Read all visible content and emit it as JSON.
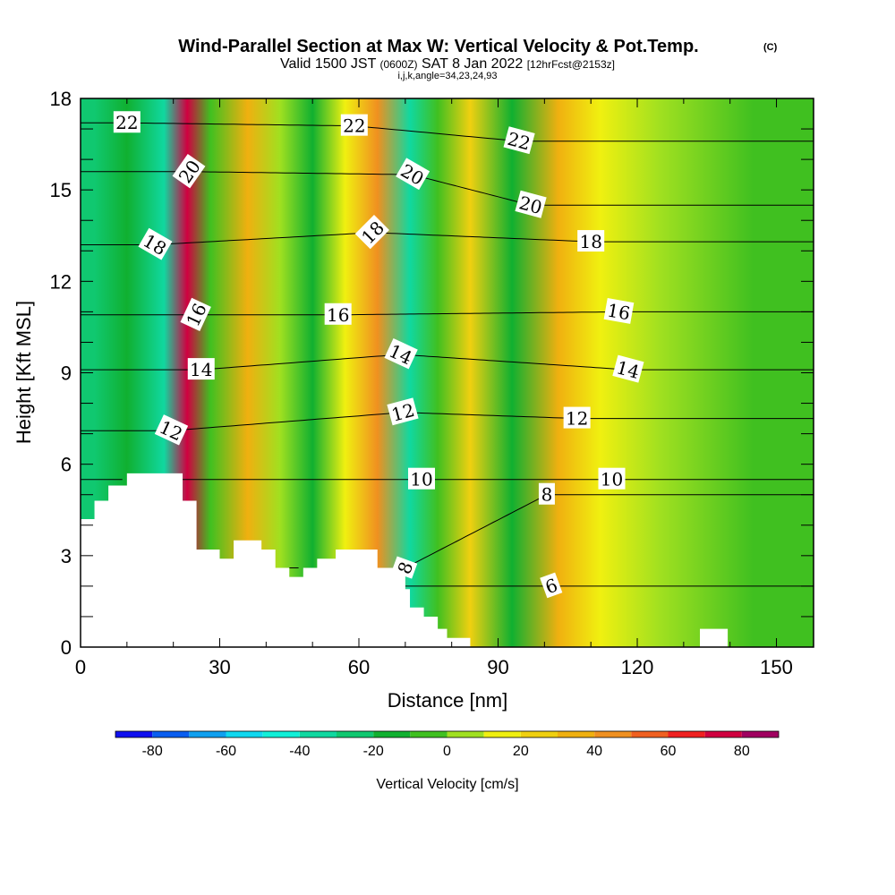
{
  "header": {
    "title": "Wind-Parallel Section at Max W: Vertical Velocity & Pot.Temp.",
    "copyright": "(C)",
    "subtitle_valid": "Valid 1500 JST",
    "subtitle_z": "(0600Z)",
    "subtitle_date": "SAT 8 Jan 2022",
    "subtitle_fcst": "[12hrFcst@2153z]",
    "subtitle_ijk": "i,j,k,angle=34,23,24,93"
  },
  "colorbar": {
    "label": "Vertical Velocity [cm/s]",
    "tick_labels": [
      "-80",
      "-60",
      "-40",
      "-20",
      "0",
      "20",
      "40",
      "60",
      "80"
    ],
    "bins": [
      -90,
      -80,
      -70,
      -60,
      -50,
      -40,
      -30,
      -20,
      -10,
      0,
      10,
      20,
      30,
      40,
      50,
      60,
      70,
      80,
      90
    ],
    "colors": [
      "#1010f0",
      "#0a5ef0",
      "#10a0f0",
      "#10d8f0",
      "#10f0d8",
      "#10d8a0",
      "#10c870",
      "#10b030",
      "#40c020",
      "#a0e020",
      "#f0f010",
      "#f0d010",
      "#f0b010",
      "#f09020",
      "#f06020",
      "#f02020",
      "#d00040",
      "#a00060",
      "#600090"
    ]
  },
  "chart_data": {
    "type": "heatmap",
    "title": "Wind-Parallel Section at Max W: Vertical Velocity & Pot.Temp.",
    "xlabel": "Distance [nm]",
    "ylabel": "Height [Kft MSL]",
    "xlim": [
      0,
      158
    ],
    "ylim": [
      0,
      18
    ],
    "x_ticks": [
      0,
      30,
      60,
      90,
      120,
      150
    ],
    "x_tick_labels": [
      "0",
      "30",
      "60",
      "90",
      "120",
      "150"
    ],
    "y_ticks": [
      0,
      3,
      6,
      9,
      12,
      15,
      18
    ],
    "y_tick_labels": [
      "0",
      "3",
      "6",
      "9",
      "12",
      "15",
      "18"
    ],
    "shaded_variable": "Vertical Velocity [cm/s]",
    "vertical_velocity_bands": [
      {
        "x": 3,
        "value": -25
      },
      {
        "x": 10,
        "value": -15
      },
      {
        "x": 18,
        "value": -35
      },
      {
        "x": 23,
        "value": 70
      },
      {
        "x": 28,
        "value": -5
      },
      {
        "x": 36,
        "value": 30
      },
      {
        "x": 43,
        "value": 5
      },
      {
        "x": 50,
        "value": -15
      },
      {
        "x": 57,
        "value": 10
      },
      {
        "x": 64,
        "value": 45
      },
      {
        "x": 71,
        "value": -40
      },
      {
        "x": 77,
        "value": -10
      },
      {
        "x": 84,
        "value": 20
      },
      {
        "x": 93,
        "value": -20
      },
      {
        "x": 103,
        "value": 30
      },
      {
        "x": 112,
        "value": 10
      },
      {
        "x": 125,
        "value": 0
      },
      {
        "x": 145,
        "value": -5
      }
    ],
    "contour_variable": "Potential Temperature",
    "contour_labels": [
      {
        "text": "22",
        "x": 10,
        "y": 17.2,
        "angle": 0
      },
      {
        "text": "20",
        "x": 23.5,
        "y": 15.6,
        "angle": -55
      },
      {
        "text": "18",
        "x": 16,
        "y": 13.2,
        "angle": 30
      },
      {
        "text": "16",
        "x": 25,
        "y": 10.9,
        "angle": -65
      },
      {
        "text": "14",
        "x": 26,
        "y": 9.1,
        "angle": 0
      },
      {
        "text": "12",
        "x": 19.5,
        "y": 7.1,
        "angle": 25
      },
      {
        "text": "22",
        "x": 59,
        "y": 17.1,
        "angle": 0
      },
      {
        "text": "20",
        "x": 71.5,
        "y": 15.5,
        "angle": 30
      },
      {
        "text": "18",
        "x": 63,
        "y": 13.6,
        "angle": -45
      },
      {
        "text": "16",
        "x": 55.5,
        "y": 10.9,
        "angle": 0
      },
      {
        "text": "14",
        "x": 69,
        "y": 9.6,
        "angle": 25
      },
      {
        "text": "12",
        "x": 69.5,
        "y": 7.7,
        "angle": -15
      },
      {
        "text": "10",
        "x": 73.5,
        "y": 5.5,
        "angle": 0
      },
      {
        "text": "8",
        "x": 70,
        "y": 2.6,
        "angle": -70
      },
      {
        "text": "22",
        "x": 94.5,
        "y": 16.6,
        "angle": 15
      },
      {
        "text": "20",
        "x": 97,
        "y": 14.5,
        "angle": 15
      },
      {
        "text": "18",
        "x": 110,
        "y": 13.3,
        "angle": 0
      },
      {
        "text": "16",
        "x": 116,
        "y": 11.0,
        "angle": 10
      },
      {
        "text": "14",
        "x": 118,
        "y": 9.1,
        "angle": 15
      },
      {
        "text": "12",
        "x": 107,
        "y": 7.5,
        "angle": 0
      },
      {
        "text": "10",
        "x": 114.5,
        "y": 5.5,
        "angle": 0
      },
      {
        "text": "8",
        "x": 100.5,
        "y": 5.0,
        "angle": 0
      },
      {
        "text": "6",
        "x": 101.5,
        "y": 2.0,
        "angle": -20
      }
    ],
    "terrain_top": [
      [
        0,
        4.2
      ],
      [
        3,
        4.8
      ],
      [
        6,
        5.3
      ],
      [
        10,
        5.7
      ],
      [
        22,
        4.8
      ],
      [
        25,
        3.2
      ],
      [
        30,
        2.9
      ],
      [
        33,
        3.5
      ],
      [
        39,
        3.2
      ],
      [
        42,
        2.6
      ],
      [
        45,
        2.3
      ],
      [
        48,
        2.6
      ],
      [
        51,
        2.9
      ],
      [
        55,
        3.2
      ],
      [
        64,
        2.6
      ],
      [
        70,
        1.9
      ],
      [
        71,
        1.3
      ],
      [
        74,
        1.0
      ],
      [
        77,
        0.6
      ],
      [
        79,
        0.3
      ],
      [
        84,
        0.0
      ],
      [
        133,
        0.0
      ],
      [
        133.5,
        0.6
      ],
      [
        139,
        0.6
      ],
      [
        139.5,
        0.0
      ],
      [
        158,
        0.0
      ]
    ]
  }
}
